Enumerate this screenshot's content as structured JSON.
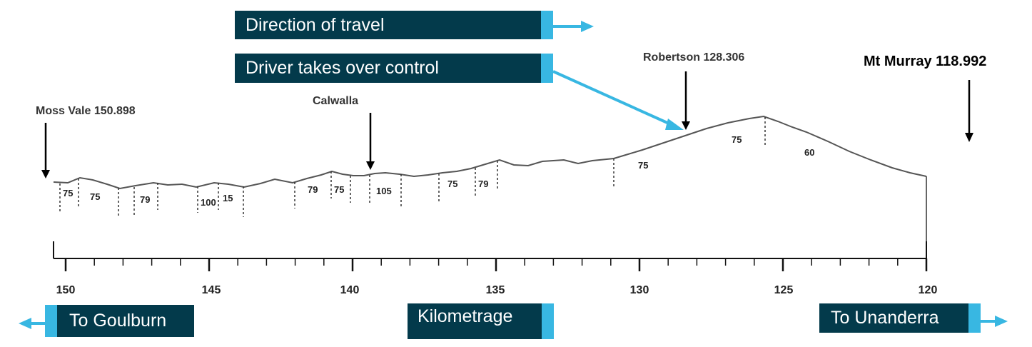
{
  "labels": {
    "direction": "Direction of travel",
    "driver": "Driver takes over control",
    "goulburn": "To Goulburn",
    "kilometrage": "Kilometrage",
    "unanderra": "To Unanderra"
  },
  "stations": {
    "moss_vale": "Moss Vale 150.898",
    "calwalla": "Calwalla",
    "robertson": "Robertson 128.306",
    "mt_murray": "Mt Murray 118.992"
  },
  "axis": {
    "ticks": [
      "150",
      "145",
      "140",
      "135",
      "130",
      "125",
      "120"
    ]
  },
  "speed_limits": [
    "75",
    "75",
    "79",
    "100",
    "15",
    "79",
    "75",
    "105",
    "75",
    "79",
    "75",
    "75",
    "60"
  ],
  "colors": {
    "label_bg": "#033a4b",
    "accent": "#38b7e2",
    "profile": "#555555"
  },
  "icons": {
    "direction_arrow": "arrow-right-icon",
    "station_arrow": "arrow-down-icon"
  }
}
